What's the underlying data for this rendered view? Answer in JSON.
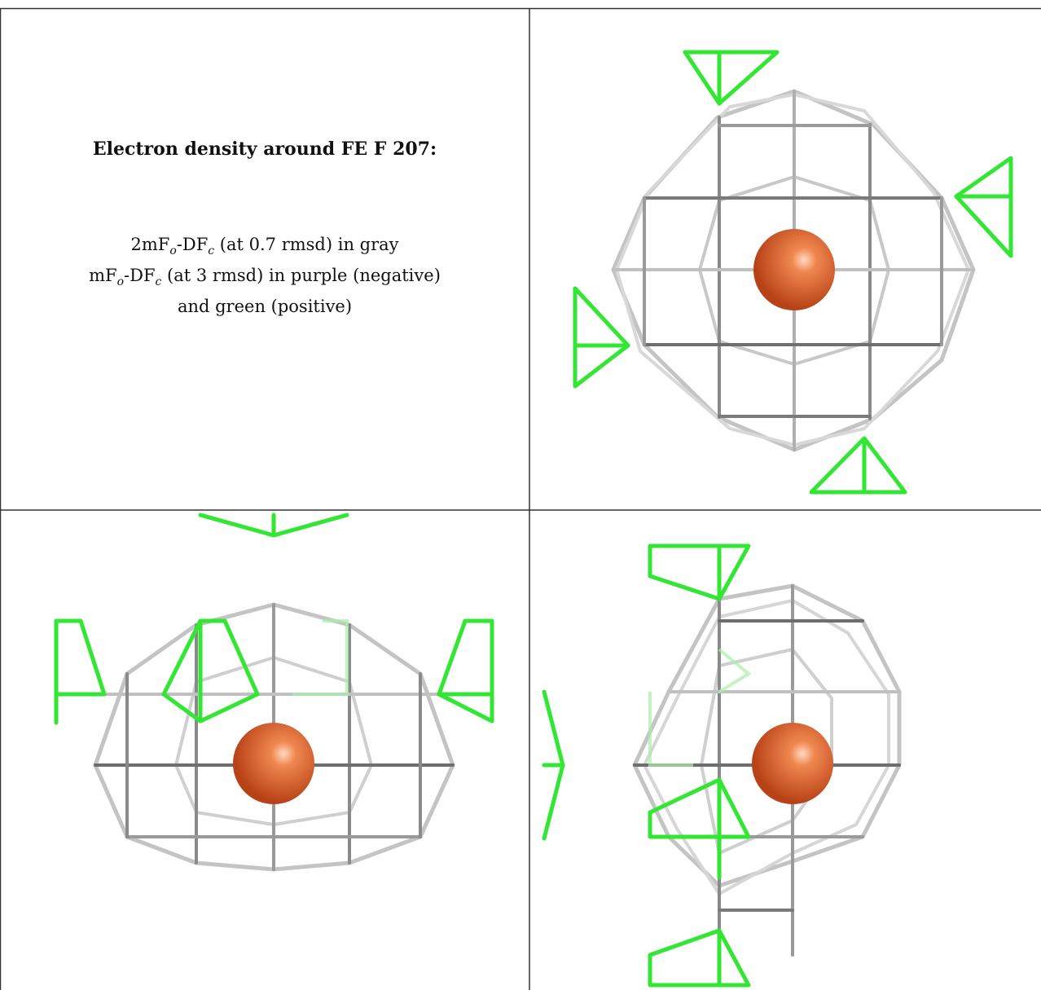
{
  "caption": {
    "title": "Electron density around FE F 207:",
    "line1": {
      "a": "2mF",
      "o": "o",
      "b": "-DF",
      "c": "c",
      "rest": " (at 0.7 rmsd) in gray"
    },
    "line2": {
      "a": "mF",
      "o": "o",
      "b": "-DF",
      "c": "c",
      "rest": " (at 3 rmsd) in purple (negative)"
    },
    "line3": "and green (positive)"
  },
  "colors": {
    "mesh_gray": "#bdbdbd",
    "mesh_dark": "#6e6e6e",
    "positive_green": "#2fe12f",
    "atom_orange": "#e8622a",
    "border": "#333333"
  },
  "views": [
    {
      "name": "top-right-view"
    },
    {
      "name": "bottom-left-view"
    },
    {
      "name": "bottom-right-view"
    }
  ]
}
